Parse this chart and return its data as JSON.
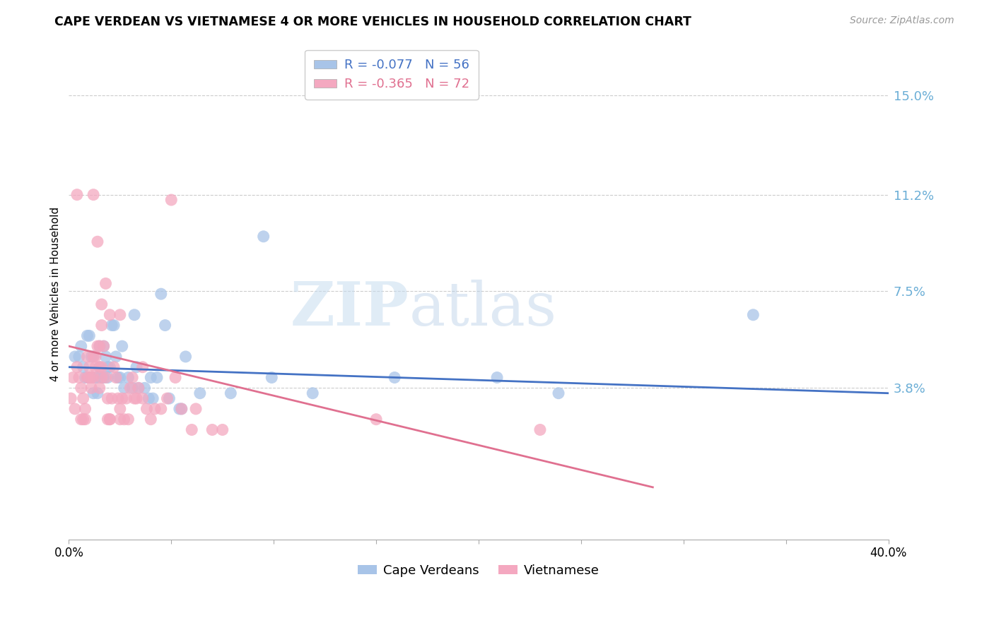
{
  "title": "CAPE VERDEAN VS VIETNAMESE 4 OR MORE VEHICLES IN HOUSEHOLD CORRELATION CHART",
  "source": "Source: ZipAtlas.com",
  "ylabel": "4 or more Vehicles in Household",
  "ytick_labels": [
    "15.0%",
    "11.2%",
    "7.5%",
    "3.8%"
  ],
  "ytick_values": [
    0.15,
    0.112,
    0.075,
    0.038
  ],
  "xlim": [
    0.0,
    0.4
  ],
  "ylim": [
    -0.02,
    0.168
  ],
  "legend_entry1": "R = -0.077   N = 56",
  "legend_entry2": "R = -0.365   N = 72",
  "color_blue": "#a8c4e8",
  "color_pink": "#f4a8c0",
  "trendline_blue": "#4472c4",
  "trendline_pink": "#e07090",
  "watermark_zip": "ZIP",
  "watermark_atlas": "atlas",
  "blue_points": [
    [
      0.003,
      0.05
    ],
    [
      0.005,
      0.05
    ],
    [
      0.006,
      0.054
    ],
    [
      0.007,
      0.046
    ],
    [
      0.008,
      0.042
    ],
    [
      0.009,
      0.058
    ],
    [
      0.009,
      0.042
    ],
    [
      0.01,
      0.058
    ],
    [
      0.011,
      0.042
    ],
    [
      0.011,
      0.05
    ],
    [
      0.012,
      0.036
    ],
    [
      0.012,
      0.05
    ],
    [
      0.013,
      0.042
    ],
    [
      0.014,
      0.036
    ],
    [
      0.014,
      0.042
    ],
    [
      0.015,
      0.046
    ],
    [
      0.015,
      0.054
    ],
    [
      0.016,
      0.042
    ],
    [
      0.017,
      0.054
    ],
    [
      0.017,
      0.042
    ],
    [
      0.018,
      0.05
    ],
    [
      0.019,
      0.042
    ],
    [
      0.019,
      0.046
    ],
    [
      0.02,
      0.046
    ],
    [
      0.021,
      0.062
    ],
    [
      0.022,
      0.062
    ],
    [
      0.023,
      0.05
    ],
    [
      0.024,
      0.042
    ],
    [
      0.025,
      0.042
    ],
    [
      0.026,
      0.054
    ],
    [
      0.027,
      0.038
    ],
    [
      0.029,
      0.042
    ],
    [
      0.031,
      0.038
    ],
    [
      0.032,
      0.066
    ],
    [
      0.033,
      0.046
    ],
    [
      0.034,
      0.038
    ],
    [
      0.037,
      0.038
    ],
    [
      0.039,
      0.034
    ],
    [
      0.04,
      0.042
    ],
    [
      0.041,
      0.034
    ],
    [
      0.043,
      0.042
    ],
    [
      0.045,
      0.074
    ],
    [
      0.047,
      0.062
    ],
    [
      0.049,
      0.034
    ],
    [
      0.054,
      0.03
    ],
    [
      0.055,
      0.03
    ],
    [
      0.057,
      0.05
    ],
    [
      0.064,
      0.036
    ],
    [
      0.079,
      0.036
    ],
    [
      0.095,
      0.096
    ],
    [
      0.099,
      0.042
    ],
    [
      0.119,
      0.036
    ],
    [
      0.159,
      0.042
    ],
    [
      0.209,
      0.042
    ],
    [
      0.239,
      0.036
    ],
    [
      0.334,
      0.066
    ]
  ],
  "pink_points": [
    [
      0.001,
      0.034
    ],
    [
      0.002,
      0.042
    ],
    [
      0.003,
      0.03
    ],
    [
      0.004,
      0.046
    ],
    [
      0.005,
      0.042
    ],
    [
      0.006,
      0.038
    ],
    [
      0.006,
      0.026
    ],
    [
      0.007,
      0.026
    ],
    [
      0.007,
      0.034
    ],
    [
      0.008,
      0.03
    ],
    [
      0.008,
      0.026
    ],
    [
      0.009,
      0.042
    ],
    [
      0.009,
      0.05
    ],
    [
      0.01,
      0.046
    ],
    [
      0.01,
      0.042
    ],
    [
      0.011,
      0.042
    ],
    [
      0.011,
      0.038
    ],
    [
      0.012,
      0.042
    ],
    [
      0.012,
      0.05
    ],
    [
      0.013,
      0.05
    ],
    [
      0.013,
      0.046
    ],
    [
      0.014,
      0.054
    ],
    [
      0.015,
      0.046
    ],
    [
      0.015,
      0.054
    ],
    [
      0.016,
      0.046
    ],
    [
      0.016,
      0.042
    ],
    [
      0.017,
      0.054
    ],
    [
      0.018,
      0.042
    ],
    [
      0.019,
      0.034
    ],
    [
      0.019,
      0.026
    ],
    [
      0.02,
      0.026
    ],
    [
      0.02,
      0.026
    ],
    [
      0.021,
      0.034
    ],
    [
      0.022,
      0.046
    ],
    [
      0.023,
      0.042
    ],
    [
      0.024,
      0.034
    ],
    [
      0.025,
      0.03
    ],
    [
      0.025,
      0.026
    ],
    [
      0.026,
      0.034
    ],
    [
      0.027,
      0.026
    ],
    [
      0.028,
      0.034
    ],
    [
      0.029,
      0.026
    ],
    [
      0.03,
      0.038
    ],
    [
      0.031,
      0.042
    ],
    [
      0.032,
      0.034
    ],
    [
      0.033,
      0.034
    ],
    [
      0.034,
      0.038
    ],
    [
      0.036,
      0.034
    ],
    [
      0.038,
      0.03
    ],
    [
      0.04,
      0.026
    ],
    [
      0.042,
      0.03
    ],
    [
      0.045,
      0.03
    ],
    [
      0.048,
      0.034
    ],
    [
      0.05,
      0.11
    ],
    [
      0.052,
      0.042
    ],
    [
      0.055,
      0.03
    ],
    [
      0.06,
      0.022
    ],
    [
      0.062,
      0.03
    ],
    [
      0.07,
      0.022
    ],
    [
      0.075,
      0.022
    ],
    [
      0.004,
      0.112
    ],
    [
      0.012,
      0.112
    ],
    [
      0.014,
      0.094
    ],
    [
      0.016,
      0.07
    ],
    [
      0.018,
      0.078
    ],
    [
      0.02,
      0.066
    ],
    [
      0.016,
      0.062
    ],
    [
      0.025,
      0.066
    ],
    [
      0.036,
      0.046
    ],
    [
      0.15,
      0.026
    ],
    [
      0.23,
      0.022
    ],
    [
      0.015,
      0.038
    ]
  ],
  "blue_trend_x": [
    0.0,
    0.4
  ],
  "blue_trend_y": [
    0.046,
    0.036
  ],
  "pink_trend_x": [
    0.0,
    0.285
  ],
  "pink_trend_y": [
    0.054,
    0.0
  ]
}
